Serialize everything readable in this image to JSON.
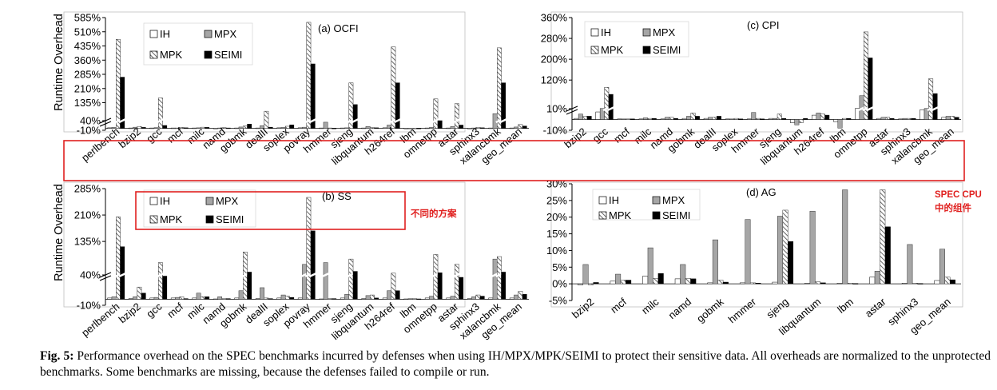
{
  "legend_labels": {
    "ih": "IH",
    "mpx": "MPX",
    "mpk": "MPK",
    "seimi": "SEIMI"
  },
  "colors": {
    "ih": "#ffffff",
    "mpx": "#a6a6a6",
    "mpk_hatch": "#555555",
    "seimi": "#000000",
    "annotation": "#e0201f"
  },
  "annotations": {
    "different_schemes": "不同的方案",
    "spec_cpu_line1": "SPEC CPU",
    "spec_cpu_line2": "中的组件"
  },
  "caption": {
    "label": "Fig. 5:",
    "text": " Performance overhead on the SPEC benchmarks incurred by defenses when using IH/MPX/MPK/SEIMI to protect their sensitive data. All overheads are normalized to the unprotected benchmarks. Some benchmarks are missing, because the defenses failed to compile or run."
  },
  "chart_data": [
    {
      "id": "ocfi",
      "type": "bar",
      "title": "(a) OCFI",
      "ylabel": "Runtime Overhead",
      "ylim": [
        -10,
        585
      ],
      "broken_axis_at": 40,
      "yticks": [
        "585%",
        "510%",
        "435%",
        "360%",
        "285%",
        "210%",
        "135%",
        "40%",
        "-10%"
      ],
      "ytick_values": [
        585,
        510,
        435,
        360,
        285,
        210,
        135,
        40,
        -10
      ],
      "categories": [
        "perlbench",
        "bzip2",
        "gcc",
        "mcf",
        "milc",
        "namd",
        "gobmk",
        "dealII",
        "soplex",
        "povray",
        "hmmer",
        "sjeng",
        "libquantum",
        "h264ref",
        "lbm",
        "omnetpp",
        "astar",
        "sphinx3",
        "xalancbmk",
        "geo_mean"
      ],
      "series": [
        {
          "name": "IH",
          "values": [
            3,
            2,
            2,
            2,
            2,
            1,
            2,
            2,
            3,
            3,
            2,
            2,
            2,
            3,
            1,
            2,
            2,
            1,
            2,
            2
          ]
        },
        {
          "name": "MPX",
          "values": [
            5,
            6,
            4,
            2,
            3,
            2,
            7,
            14,
            5,
            6,
            32,
            3,
            10,
            17,
            1,
            5,
            10,
            2,
            77,
            7
          ]
        },
        {
          "name": "MPK",
          "values": [
            470,
            10,
            160,
            5,
            6,
            4,
            12,
            90,
            11,
            560,
            2,
            240,
            4,
            430,
            1,
            155,
            130,
            5,
            425,
            20
          ]
        },
        {
          "name": "SEIMI",
          "values": [
            270,
            5,
            15,
            3,
            5,
            2,
            22,
            6,
            18,
            340,
            1,
            125,
            3,
            240,
            1,
            40,
            17,
            3,
            240,
            12
          ]
        }
      ]
    },
    {
      "id": "cpi",
      "type": "bar",
      "title": "(c) CPI",
      "ylabel": "",
      "ylim": [
        -10,
        360
      ],
      "broken_axis_at": 10,
      "yticks": [
        "360%",
        "280%",
        "200%",
        "120%",
        "10%",
        "-10%"
      ],
      "ytick_values": [
        360,
        280,
        200,
        120,
        10,
        -10
      ],
      "categories": [
        "bzip2",
        "gcc",
        "mcf",
        "milc",
        "namd",
        "gobmk",
        "dealII",
        "soplex",
        "hmmer",
        "sjeng",
        "libquantum",
        "h264ref",
        "lbm",
        "omnetpp",
        "astar",
        "sphinx3",
        "xalancbmk",
        "geo_mean"
      ],
      "series": [
        {
          "name": "IH",
          "values": [
            1,
            7,
            0.5,
            0.5,
            0.5,
            1,
            1,
            0.5,
            0.5,
            1,
            -3,
            4,
            -2,
            11,
            1,
            0.5,
            9,
            2
          ]
        },
        {
          "name": "MPX",
          "values": [
            5,
            11,
            0.5,
            1.5,
            2,
            3,
            2,
            0.5,
            6.5,
            1,
            -5,
            6,
            -8,
            60,
            2,
            1,
            11,
            3
          ]
        },
        {
          "name": "MPK",
          "values": [
            3,
            92,
            0.5,
            1,
            2,
            6,
            2,
            1,
            1,
            5,
            -3,
            5,
            1,
            305,
            2,
            1,
            125,
            3
          ]
        },
        {
          "name": "SEIMI",
          "values": [
            3,
            65,
            0.5,
            1,
            1,
            3,
            3,
            0.5,
            0.5,
            1,
            1,
            4,
            1,
            205,
            1,
            1,
            68,
            2
          ]
        }
      ]
    },
    {
      "id": "ss",
      "type": "bar",
      "title": "(b) SS",
      "ylabel": "Runtime Overhead",
      "ylim": [
        -10,
        285
      ],
      "broken_axis_at": 40,
      "yticks": [
        "285%",
        "210%",
        "135%",
        "40%",
        "-10%"
      ],
      "ytick_values": [
        285,
        210,
        135,
        40,
        -10
      ],
      "categories": [
        "perlbench",
        "bzip2",
        "gcc",
        "mcf",
        "milc",
        "namd",
        "gobmk",
        "dealII",
        "soplex",
        "povray",
        "hmmer",
        "sjeng",
        "libquantum",
        "h264ref",
        "lbm",
        "omnetpp",
        "astar",
        "sphinx3",
        "xalancbmk",
        "geo_mean"
      ],
      "series": [
        {
          "name": "IH",
          "values": [
            2,
            1,
            2,
            2,
            2,
            0.5,
            2,
            1,
            2,
            2,
            0.5,
            2,
            1,
            2,
            0.5,
            2,
            2,
            1,
            2,
            2
          ]
        },
        {
          "name": "MPX",
          "values": [
            4,
            4,
            3,
            3,
            10,
            4,
            14,
            19,
            7,
            70,
            75,
            8,
            6,
            14,
            1,
            5,
            5,
            4,
            85,
            7
          ]
        },
        {
          "name": "MPK",
          "values": [
            205,
            20,
            75,
            4,
            4,
            1,
            105,
            2,
            5,
            260,
            1,
            85,
            7,
            45,
            1,
            98,
            70,
            7,
            92,
            13
          ]
        },
        {
          "name": "SEIMI",
          "values": [
            120,
            10,
            38,
            1,
            4,
            1,
            48,
            1,
            3,
            165,
            1,
            50,
            2,
            14,
            0.5,
            46,
            36,
            5,
            48,
            8
          ]
        }
      ]
    },
    {
      "id": "ag",
      "type": "bar",
      "title": "(d) AG",
      "ylabel": "",
      "ylim": [
        -5,
        30
      ],
      "yticks": [
        "30%",
        "25%",
        "20%",
        "15%",
        "10%",
        "5%",
        "0%",
        "-5%"
      ],
      "ytick_values": [
        30,
        25,
        20,
        15,
        10,
        5,
        0,
        -5
      ],
      "categories": [
        "bzip2",
        "mcf",
        "milc",
        "namd",
        "gobmk",
        "hmmer",
        "sjeng",
        "libquantum",
        "lbm",
        "astar",
        "sphinx3",
        "geo_mean"
      ],
      "series": [
        {
          "name": "IH",
          "values": [
            -0.3,
            0.8,
            2.3,
            1.5,
            0.3,
            0.3,
            0.5,
            0.2,
            0.2,
            2,
            0.2,
            1
          ]
        },
        {
          "name": "MPX",
          "values": [
            5.8,
            2.9,
            10.8,
            5.8,
            13.2,
            19.3,
            20.3,
            21.8,
            28.2,
            3.8,
            11.8,
            10.4
          ]
        },
        {
          "name": "MPK",
          "values": [
            -0.3,
            1.1,
            1.6,
            1.6,
            1.1,
            0.3,
            22.1,
            0.6,
            0.2,
            28.2,
            0.2,
            2
          ]
        },
        {
          "name": "SEIMI",
          "values": [
            0.4,
            1.1,
            3.1,
            1.5,
            0.5,
            0.2,
            12.7,
            0.3,
            0.1,
            17.1,
            0.1,
            1.2
          ]
        }
      ]
    }
  ]
}
